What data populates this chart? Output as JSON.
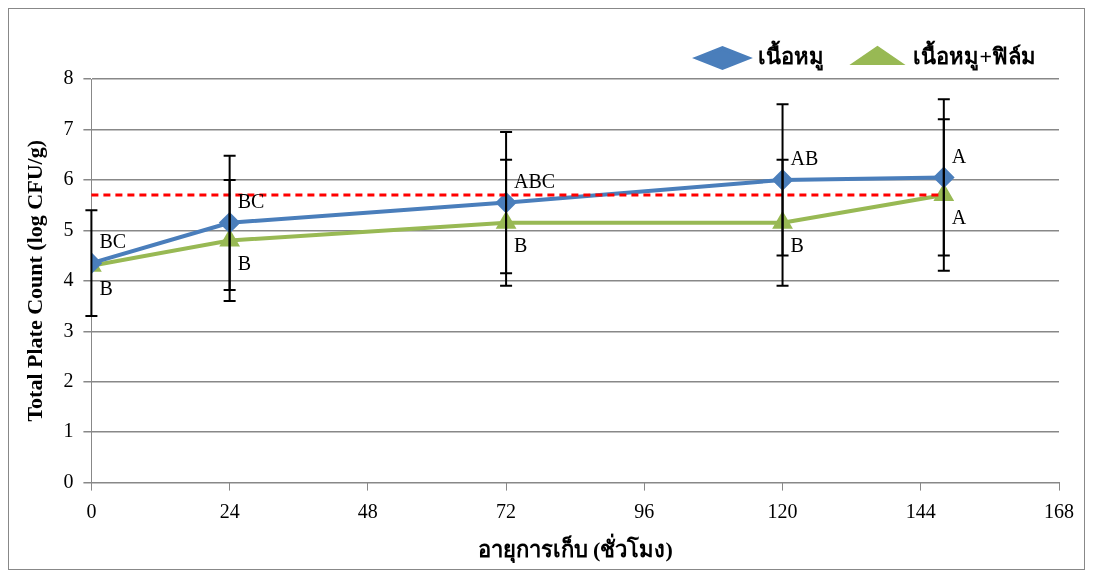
{
  "chart_data": {
    "type": "line",
    "xlabel": "อายุการเก็บ (ชั่วโมง)",
    "ylabel": "Total Plate Count (log CFU/g)",
    "x": [
      0,
      24,
      72,
      120,
      148
    ],
    "xlim": [
      0,
      168
    ],
    "xticks": [
      0,
      24,
      48,
      72,
      96,
      120,
      144,
      168
    ],
    "ylim": [
      0,
      8
    ],
    "yticks": [
      0,
      1,
      2,
      3,
      4,
      5,
      6,
      7,
      8
    ],
    "grid": "y",
    "legend": "top right",
    "line_style": "solid",
    "series": [
      {
        "name": "เนื้อหมู",
        "color": "#4a7ebb",
        "marker": "diamond",
        "values": [
          4.35,
          5.15,
          5.55,
          6.0,
          6.05
        ],
        "errors": [
          1.05,
          1.33,
          1.4,
          1.5,
          1.55
        ],
        "value_labels": [
          "BC",
          "BC",
          "ABC",
          "AB",
          "A"
        ]
      },
      {
        "name": "เนื้อหมู+ฟิล์ม",
        "color": "#98b954",
        "marker": "triangle",
        "values": [
          4.3,
          4.8,
          5.15,
          5.15,
          5.7
        ],
        "errors": [
          null,
          1.2,
          1.25,
          1.25,
          1.5
        ],
        "value_labels": [
          "B",
          "B",
          "B",
          "B",
          "A"
        ]
      }
    ],
    "ref_lines": [
      {
        "axis": "y",
        "value": 5.7,
        "color": "#ff0000",
        "line_style": "dashed"
      }
    ]
  }
}
